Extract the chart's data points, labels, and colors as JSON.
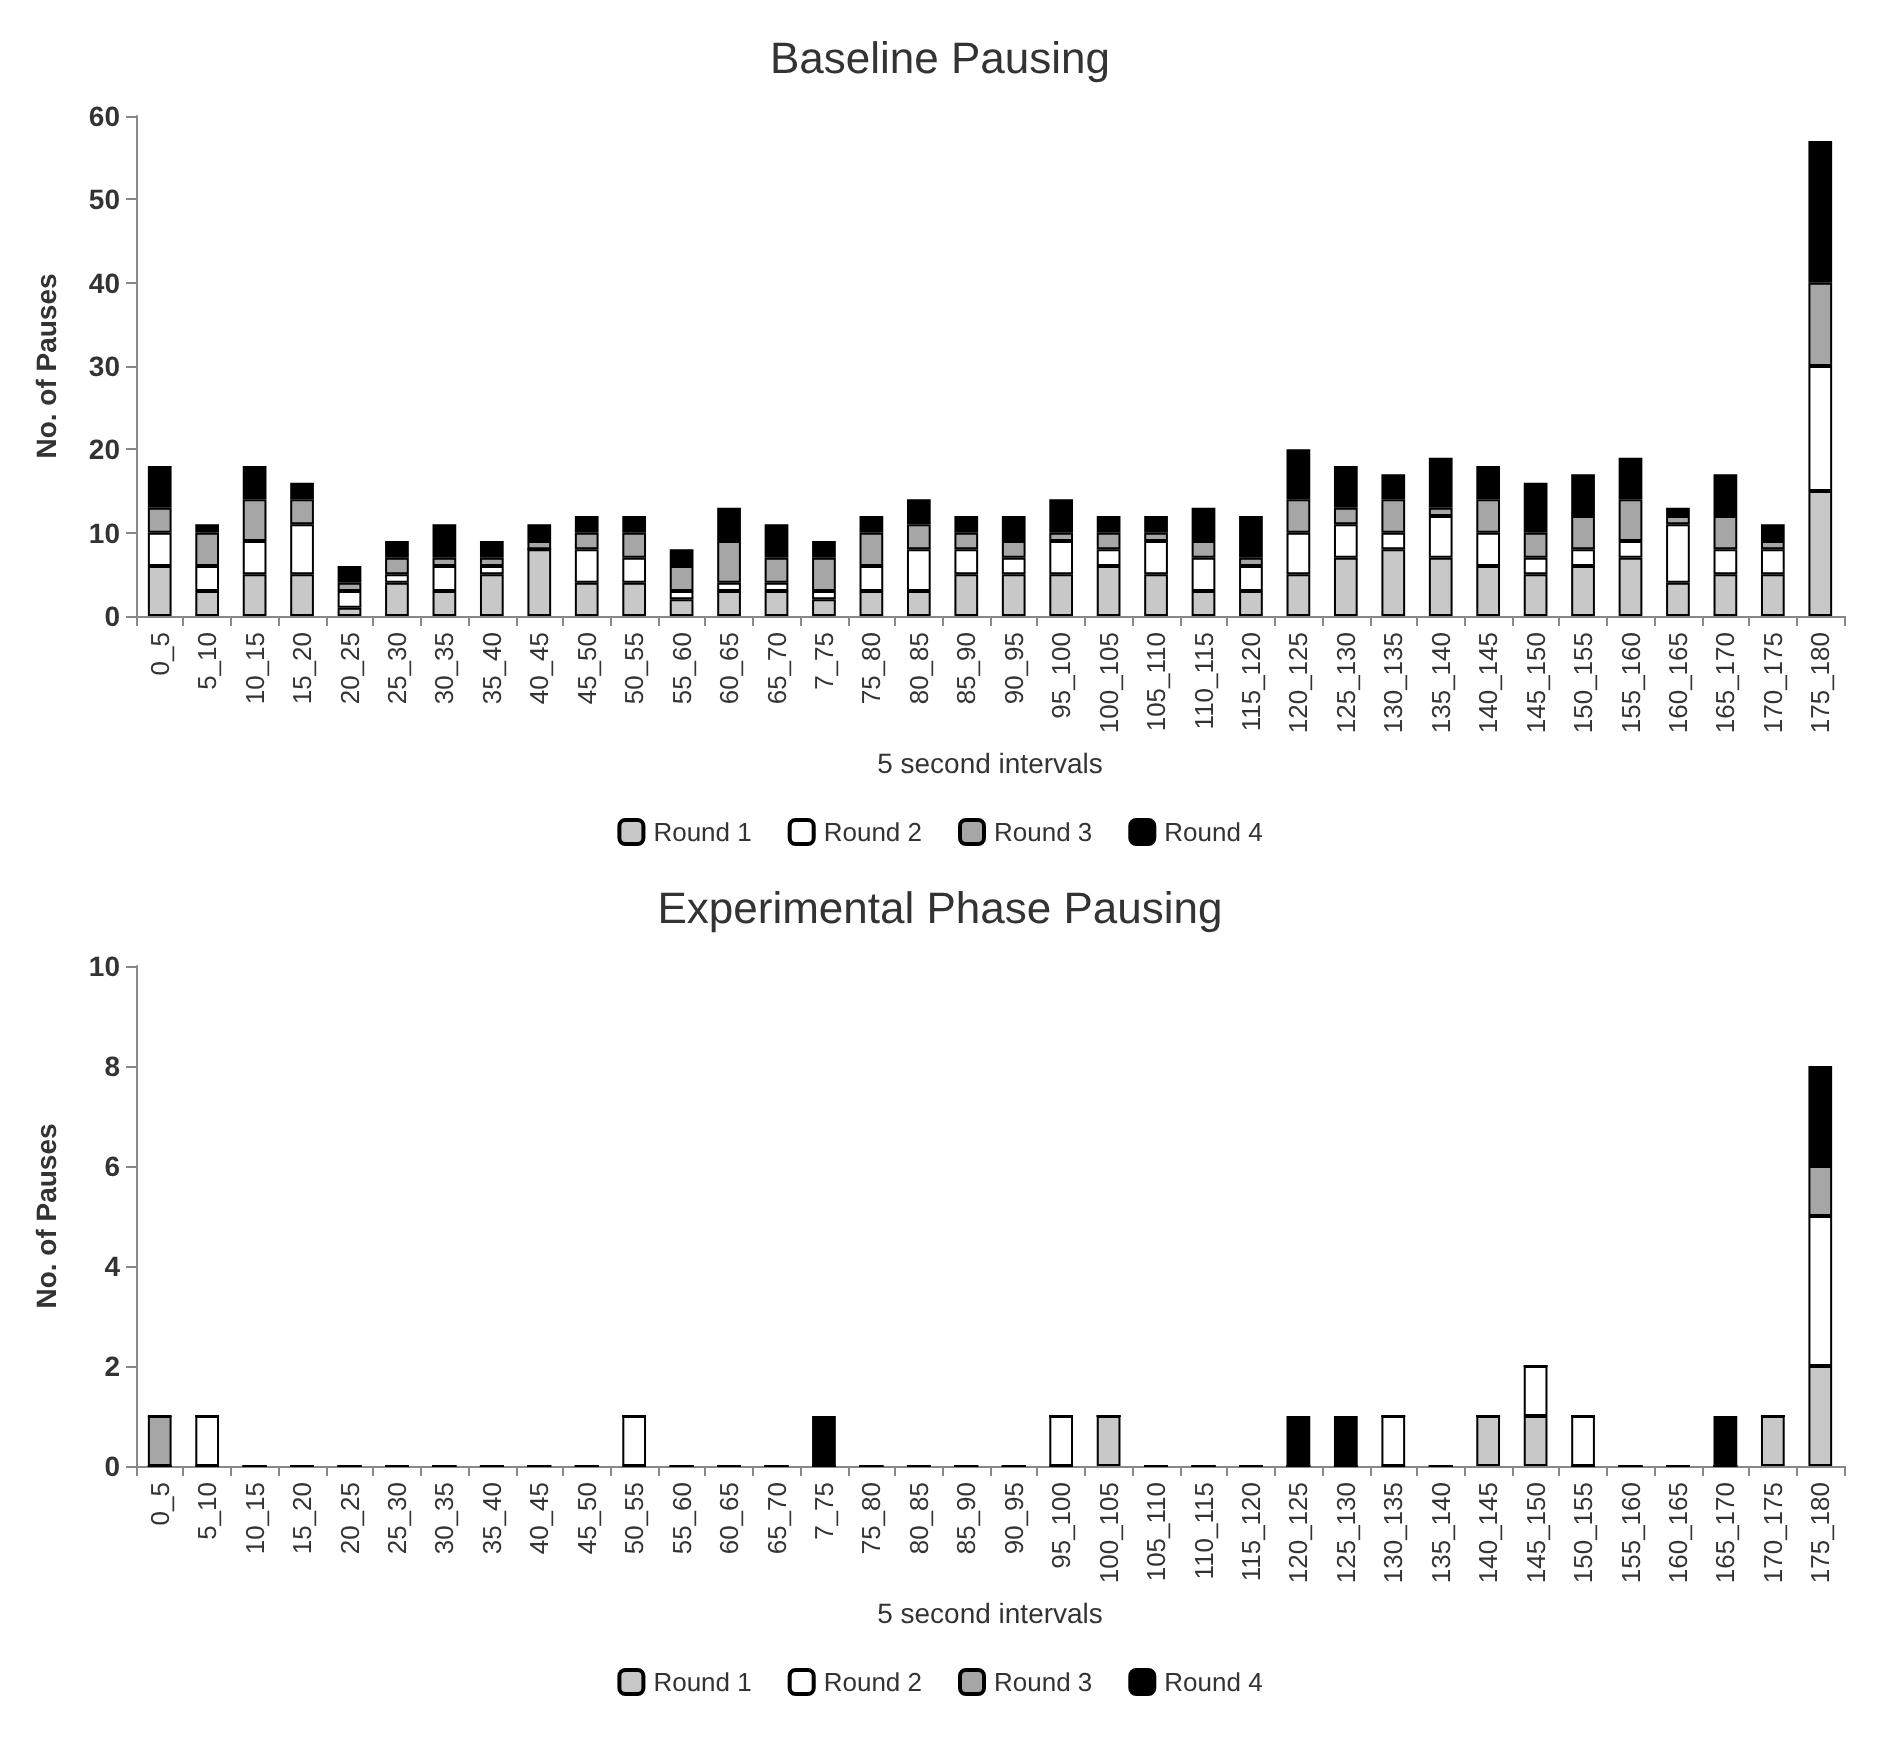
{
  "chart_data": [
    {
      "type": "bar",
      "title": "Baseline Pausing",
      "xlabel": "5 second intervals",
      "ylabel": "No. of Pauses",
      "stacked": true,
      "categories": [
        "0_5",
        "5_10",
        "10_15",
        "15_20",
        "20_25",
        "25_30",
        "30_35",
        "35_40",
        "40_45",
        "45_50",
        "50_55",
        "55_60",
        "60_65",
        "65_70",
        "7_75",
        "75_80",
        "80_85",
        "85_90",
        "90_95",
        "95_100",
        "100_105",
        "105_110",
        "110_115",
        "115_120",
        "120_125",
        "125_130",
        "130_135",
        "135_140",
        "140_145",
        "145_150",
        "150_155",
        "155_160",
        "160_165",
        "165_170",
        "170_175",
        "175_180"
      ],
      "series": [
        {
          "name": "Round 1",
          "color": "#c8c8c8",
          "values": [
            6,
            3,
            5,
            5,
            1,
            4,
            3,
            5,
            8,
            4,
            4,
            2,
            3,
            3,
            2,
            3,
            3,
            5,
            5,
            5,
            6,
            5,
            3,
            3,
            5,
            7,
            8,
            7,
            6,
            5,
            6,
            7,
            4,
            5,
            5,
            15
          ]
        },
        {
          "name": "Round 2",
          "color": "#ffffff",
          "values": [
            4,
            3,
            4,
            6,
            2,
            1,
            3,
            1,
            0,
            4,
            3,
            1,
            1,
            1,
            1,
            3,
            5,
            3,
            2,
            4,
            2,
            4,
            4,
            3,
            5,
            4,
            2,
            5,
            4,
            2,
            2,
            2,
            7,
            3,
            3,
            15
          ]
        },
        {
          "name": "Round 3",
          "color": "#a6a6a6",
          "values": [
            3,
            4,
            5,
            3,
            1,
            2,
            1,
            1,
            1,
            2,
            3,
            3,
            5,
            3,
            4,
            4,
            3,
            2,
            2,
            1,
            2,
            1,
            2,
            1,
            4,
            2,
            4,
            1,
            4,
            3,
            4,
            5,
            1,
            4,
            1,
            10
          ]
        },
        {
          "name": "Round 4",
          "color": "#000000",
          "values": [
            5,
            1,
            4,
            2,
            2,
            2,
            4,
            2,
            2,
            2,
            2,
            2,
            4,
            4,
            2,
            2,
            3,
            2,
            3,
            4,
            2,
            2,
            4,
            5,
            6,
            5,
            3,
            6,
            4,
            6,
            5,
            5,
            1,
            5,
            2,
            17
          ]
        }
      ],
      "ylim": [
        0,
        60
      ],
      "yticks": [
        0,
        10,
        20,
        30,
        40,
        50,
        60
      ],
      "grid": false,
      "legend": "bottom"
    },
    {
      "type": "bar",
      "title": "Experimental Phase Pausing",
      "xlabel": "5 second intervals",
      "ylabel": "No. of Pauses",
      "stacked": true,
      "categories": [
        "0_5",
        "5_10",
        "10_15",
        "15_20",
        "20_25",
        "25_30",
        "30_35",
        "35_40",
        "40_45",
        "45_50",
        "50_55",
        "55_60",
        "60_65",
        "65_70",
        "7_75",
        "75_80",
        "80_85",
        "85_90",
        "90_95",
        "95_100",
        "100_105",
        "105_110",
        "110_115",
        "115_120",
        "120_125",
        "125_130",
        "130_135",
        "135_140",
        "140_145",
        "145_150",
        "150_155",
        "155_160",
        "160_165",
        "165_170",
        "170_175",
        "175_180"
      ],
      "series": [
        {
          "name": "Round 1",
          "color": "#c8c8c8",
          "values": [
            0,
            0,
            0,
            0,
            0,
            0,
            0,
            0,
            0,
            0,
            0,
            0,
            0,
            0,
            0,
            0,
            0,
            0,
            0,
            0,
            1,
            0,
            0,
            0,
            0,
            0,
            0,
            0,
            1,
            1,
            0,
            0,
            0,
            0,
            1,
            2
          ]
        },
        {
          "name": "Round 2",
          "color": "#ffffff",
          "values": [
            0,
            1,
            0,
            0,
            0,
            0,
            0,
            0,
            0,
            0,
            1,
            0,
            0,
            0,
            0,
            0,
            0,
            0,
            0,
            1,
            0,
            0,
            0,
            0,
            0,
            0,
            1,
            0,
            0,
            1,
            1,
            0,
            0,
            0,
            0,
            3
          ]
        },
        {
          "name": "Round 3",
          "color": "#a6a6a6",
          "values": [
            1,
            0,
            0,
            0,
            0,
            0,
            0,
            0,
            0,
            0,
            0,
            0,
            0,
            0,
            0,
            0,
            0,
            0,
            0,
            0,
            0,
            0,
            0,
            0,
            0,
            0,
            0,
            0,
            0,
            0,
            0,
            0,
            0,
            0,
            0,
            1
          ]
        },
        {
          "name": "Round 4",
          "color": "#000000",
          "values": [
            0,
            0,
            0,
            0,
            0,
            0,
            0,
            0,
            0,
            0,
            0,
            0,
            0,
            0,
            1,
            0,
            0,
            0,
            0,
            0,
            0,
            0,
            0,
            0,
            1,
            1,
            0,
            0,
            0,
            0,
            0,
            0,
            0,
            1,
            0,
            2
          ]
        }
      ],
      "ylim": [
        0,
        10
      ],
      "yticks": [
        0,
        2,
        4,
        6,
        8,
        10
      ],
      "grid": false,
      "legend": "bottom"
    }
  ]
}
